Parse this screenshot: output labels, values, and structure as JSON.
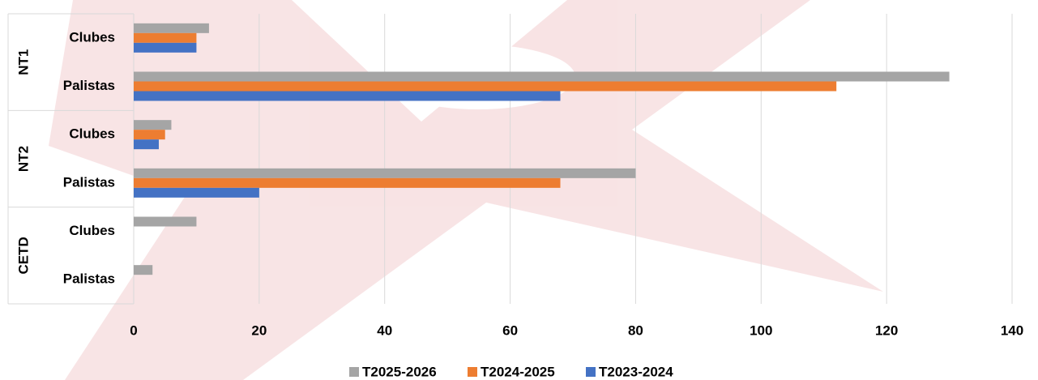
{
  "chart_data": {
    "type": "bar",
    "orientation": "horizontal",
    "groups": [
      "NT1",
      "NT2",
      "CETD"
    ],
    "categories": [
      "Clubes",
      "Palistas",
      "Clubes",
      "Palistas",
      "Clubes",
      "Palistas"
    ],
    "series": [
      {
        "name": "T2025-2026",
        "color": "#a5a5a5",
        "values": [
          12,
          130,
          6,
          80,
          10,
          3
        ]
      },
      {
        "name": "T2024-2025",
        "color": "#ed7d31",
        "values": [
          10,
          112,
          5,
          68,
          null,
          null
        ]
      },
      {
        "name": "T2023-2024",
        "color": "#4472c4",
        "values": [
          10,
          68,
          4,
          20,
          null,
          null
        ]
      }
    ],
    "xlim": [
      0,
      140
    ],
    "xticks": [
      0,
      20,
      40,
      60,
      80,
      100,
      120,
      140
    ],
    "grid": true,
    "legend": "bottom"
  }
}
